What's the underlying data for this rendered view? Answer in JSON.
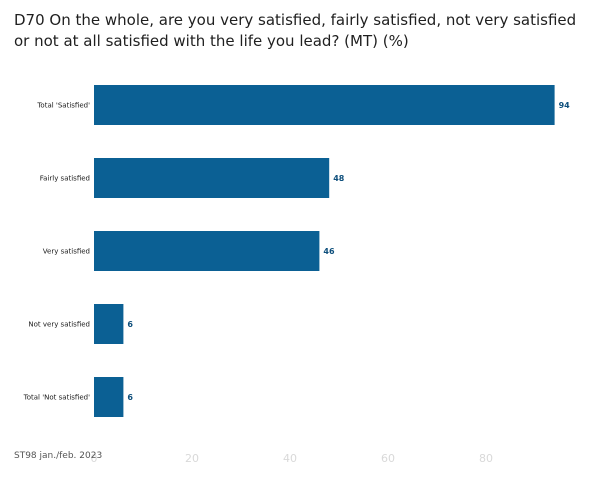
{
  "chart_data": {
    "type": "bar",
    "orientation": "horizontal",
    "title": "D70 On the whole, are you very satisfied, fairly satisfied, not very satisfied or not at all satisfied with the life you lead? (MT) (%)",
    "categories": [
      "Total 'Satisfied'",
      "Fairly satisfied",
      "Very satisfied",
      "Not very satisfied",
      "Total 'Not satisfied'"
    ],
    "values": [
      94,
      48,
      46,
      6,
      6
    ],
    "xlim": [
      0,
      100
    ],
    "xticks": [
      0,
      20,
      40,
      60,
      80
    ],
    "grid": false,
    "bar_color": "#0b6094",
    "value_label_color": "#0e4f7c"
  },
  "source": "ST98 jan./feb. 2023"
}
